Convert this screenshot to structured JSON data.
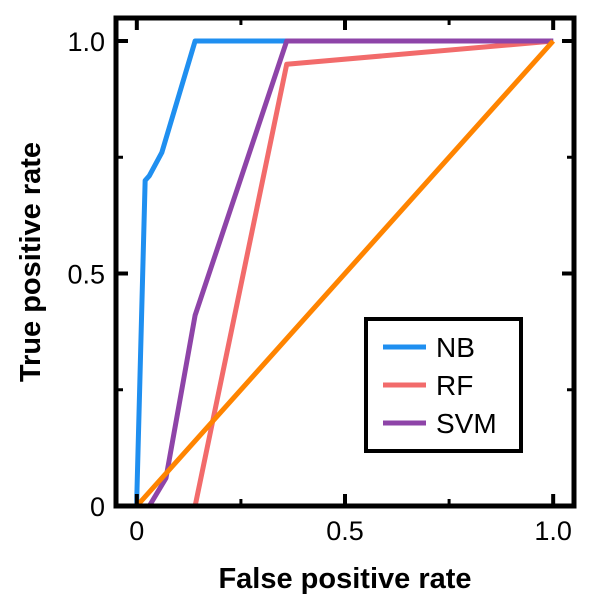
{
  "chart_data": {
    "type": "line",
    "title": "",
    "xlabel": "False positive rate",
    "ylabel": "True positive rate",
    "xlim": [
      -0.05,
      1.05
    ],
    "ylim": [
      0,
      1.0
    ],
    "x_ticks": [
      0,
      0.5,
      1.0
    ],
    "x_tick_labels": [
      "0",
      "0.5",
      "1.0"
    ],
    "y_ticks": [
      0,
      0.5,
      1.0
    ],
    "y_tick_labels": [
      "0",
      "0.5",
      "1.0"
    ],
    "grid": false,
    "legend_position": "bottom-right",
    "series": [
      {
        "name": "NB",
        "color": "#1f8ff0",
        "points": [
          [
            0.0,
            0.0
          ],
          [
            0.0,
            0.02
          ],
          [
            0.02,
            0.7
          ],
          [
            0.03,
            0.71
          ],
          [
            0.06,
            0.76
          ],
          [
            0.14,
            1.0
          ],
          [
            1.0,
            1.0
          ]
        ]
      },
      {
        "name": "RF",
        "color": "#f26b6b",
        "points": [
          [
            0.14,
            0.0
          ],
          [
            0.36,
            0.95
          ],
          [
            1.0,
            1.0
          ]
        ]
      },
      {
        "name": "SVM",
        "color": "#8e44a8",
        "points": [
          [
            0.03,
            0.0
          ],
          [
            0.07,
            0.06
          ],
          [
            0.14,
            0.41
          ],
          [
            0.36,
            1.0
          ],
          [
            1.0,
            1.0
          ]
        ]
      },
      {
        "name": "",
        "color": "#ff8400",
        "points": [
          [
            0.0,
            0.0
          ],
          [
            1.0,
            1.0
          ]
        ]
      }
    ]
  }
}
